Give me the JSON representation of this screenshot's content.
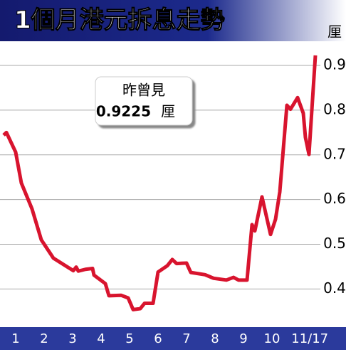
{
  "chart_data": {
    "type": "line",
    "title": "1個月港元拆息走勢",
    "y_unit": "厘",
    "annotation": {
      "label": "昨曾見",
      "value": "0.9225",
      "unit": "厘"
    },
    "x": [
      0.575,
      0.675,
      1,
      1.2,
      1.575,
      1.9,
      2.325,
      2.825,
      3.025,
      3.125,
      3.2,
      3.45,
      3.7,
      3.75,
      4.15,
      4.275,
      4.7,
      4.95,
      5.125,
      5.375,
      5.525,
      5.825,
      6,
      6.325,
      6.5,
      6.65,
      7,
      7.15,
      7.65,
      7.95,
      8.4,
      8.65,
      8.825,
      9.125,
      9.3,
      9.4,
      9.65,
      9.95,
      10.125,
      10.275,
      10.525,
      10.65,
      10.9,
      11.1,
      11.175,
      11.3,
      11.525
    ],
    "series": [
      {
        "name": "1個月港元拆息",
        "color": "#d8142e",
        "values": [
          0.744,
          0.75,
          0.706,
          0.637,
          0.579,
          0.51,
          0.469,
          0.449,
          0.441,
          0.449,
          0.44,
          0.444,
          0.446,
          0.431,
          0.412,
          0.385,
          0.386,
          0.38,
          0.354,
          0.356,
          0.368,
          0.368,
          0.438,
          0.452,
          0.466,
          0.457,
          0.458,
          0.437,
          0.432,
          0.424,
          0.42,
          0.426,
          0.42,
          0.42,
          0.544,
          0.53,
          0.606,
          0.522,
          0.556,
          0.617,
          0.811,
          0.802,
          0.828,
          0.793,
          0.739,
          0.701,
          0.9225
        ]
      }
    ],
    "xlim": [
      0.45,
      11.7
    ],
    "xticks": [
      1,
      2,
      3,
      4,
      5,
      6,
      7,
      8,
      9,
      10,
      {
        "value": 11.53,
        "label": "11/17"
      }
    ],
    "ylim": [
      0.31,
      0.935
    ],
    "yticks": [
      0.4,
      0.5,
      0.6,
      0.7,
      0.8,
      0.9
    ],
    "grid": true
  }
}
